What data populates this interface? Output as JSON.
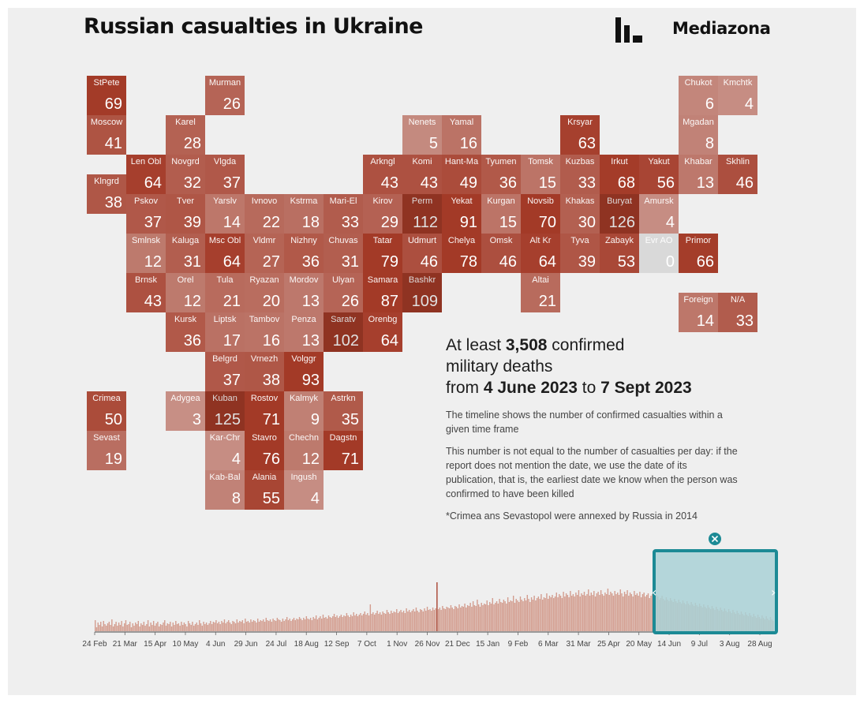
{
  "header": {
    "title": "Russian casualties in Ukraine",
    "brand": "Mediazona"
  },
  "colors": {
    "background": "#efefef",
    "tile_base": "#a33a27",
    "tile_zero": "#d9d9d9",
    "bar": "#c9826f",
    "selection_fill": "#a9d1d6",
    "selection_border": "#1c8a95"
  },
  "regions": [
    {
      "name": "StPete",
      "value": "69",
      "row": 0,
      "col": 0
    },
    {
      "name": "Murman",
      "value": "26",
      "row": 0,
      "col": 3
    },
    {
      "name": "Chukot",
      "value": "6",
      "row": 0,
      "col": 15
    },
    {
      "name": "Kmchtk",
      "value": "4",
      "row": 0,
      "col": 16
    },
    {
      "name": "Moscow",
      "value": "41",
      "row": 1,
      "col": 0
    },
    {
      "name": "Karel",
      "value": "28",
      "row": 1,
      "col": 2
    },
    {
      "name": "Nenets",
      "value": "5",
      "row": 1,
      "col": 8
    },
    {
      "name": "Yamal",
      "value": "16",
      "row": 1,
      "col": 9
    },
    {
      "name": "Krsyar",
      "value": "63",
      "row": 1,
      "col": 12
    },
    {
      "name": "Mgadan",
      "value": "8",
      "row": 1,
      "col": 15
    },
    {
      "name": "Len Obl",
      "value": "64",
      "row": 2,
      "col": 1
    },
    {
      "name": "Novgrd",
      "value": "32",
      "row": 2,
      "col": 2
    },
    {
      "name": "Vlgda",
      "value": "37",
      "row": 2,
      "col": 3
    },
    {
      "name": "Arkngl",
      "value": "43",
      "row": 2,
      "col": 7
    },
    {
      "name": "Komi",
      "value": "43",
      "row": 2,
      "col": 8
    },
    {
      "name": "Hant-Ma",
      "value": "49",
      "row": 2,
      "col": 9
    },
    {
      "name": "Tyumen",
      "value": "36",
      "row": 2,
      "col": 10
    },
    {
      "name": "Tomsk",
      "value": "15",
      "row": 2,
      "col": 11
    },
    {
      "name": "Kuzbas",
      "value": "33",
      "row": 2,
      "col": 12
    },
    {
      "name": "Irkut",
      "value": "68",
      "row": 2,
      "col": 13
    },
    {
      "name": "Yakut",
      "value": "56",
      "row": 2,
      "col": 14
    },
    {
      "name": "Khabar",
      "value": "13",
      "row": 2,
      "col": 15
    },
    {
      "name": "Skhlin",
      "value": "46",
      "row": 2,
      "col": 16
    },
    {
      "name": "Klngrd",
      "value": "38",
      "row": 2.5,
      "col": 0
    },
    {
      "name": "Pskov",
      "value": "37",
      "row": 3,
      "col": 1
    },
    {
      "name": "Tver",
      "value": "39",
      "row": 3,
      "col": 2
    },
    {
      "name": "Yarslv",
      "value": "14",
      "row": 3,
      "col": 3
    },
    {
      "name": "Ivnovo",
      "value": "22",
      "row": 3,
      "col": 4
    },
    {
      "name": "Kstrma",
      "value": "18",
      "row": 3,
      "col": 5
    },
    {
      "name": "Mari-El",
      "value": "33",
      "row": 3,
      "col": 6
    },
    {
      "name": "Kirov",
      "value": "29",
      "row": 3,
      "col": 7
    },
    {
      "name": "Perm",
      "value": "112",
      "row": 3,
      "col": 8
    },
    {
      "name": "Yekat",
      "value": "91",
      "row": 3,
      "col": 9
    },
    {
      "name": "Kurgan",
      "value": "15",
      "row": 3,
      "col": 10
    },
    {
      "name": "Novsib",
      "value": "70",
      "row": 3,
      "col": 11
    },
    {
      "name": "Khakas",
      "value": "30",
      "row": 3,
      "col": 12
    },
    {
      "name": "Buryat",
      "value": "126",
      "row": 3,
      "col": 13
    },
    {
      "name": "Amursk",
      "value": "4",
      "row": 3,
      "col": 14
    },
    {
      "name": "Smlnsk",
      "value": "12",
      "row": 4,
      "col": 1
    },
    {
      "name": "Kaluga",
      "value": "31",
      "row": 4,
      "col": 2
    },
    {
      "name": "Msc Obl",
      "value": "64",
      "row": 4,
      "col": 3
    },
    {
      "name": "Vldmr",
      "value": "27",
      "row": 4,
      "col": 4
    },
    {
      "name": "Nizhny",
      "value": "36",
      "row": 4,
      "col": 5
    },
    {
      "name": "Chuvas",
      "value": "31",
      "row": 4,
      "col": 6
    },
    {
      "name": "Tatar",
      "value": "79",
      "row": 4,
      "col": 7
    },
    {
      "name": "Udmurt",
      "value": "46",
      "row": 4,
      "col": 8
    },
    {
      "name": "Chelya",
      "value": "78",
      "row": 4,
      "col": 9
    },
    {
      "name": "Omsk",
      "value": "46",
      "row": 4,
      "col": 10
    },
    {
      "name": "Alt Kr",
      "value": "64",
      "row": 4,
      "col": 11
    },
    {
      "name": "Tyva",
      "value": "39",
      "row": 4,
      "col": 12
    },
    {
      "name": "Zabayk",
      "value": "53",
      "row": 4,
      "col": 13
    },
    {
      "name": "Evr AO",
      "value": "0",
      "row": 4,
      "col": 14
    },
    {
      "name": "Primor",
      "value": "66",
      "row": 4,
      "col": 15
    },
    {
      "name": "Brnsk",
      "value": "43",
      "row": 5,
      "col": 1
    },
    {
      "name": "Orel",
      "value": "12",
      "row": 5,
      "col": 2
    },
    {
      "name": "Tula",
      "value": "21",
      "row": 5,
      "col": 3
    },
    {
      "name": "Ryazan",
      "value": "20",
      "row": 5,
      "col": 4
    },
    {
      "name": "Mordov",
      "value": "13",
      "row": 5,
      "col": 5
    },
    {
      "name": "Ulyan",
      "value": "26",
      "row": 5,
      "col": 6
    },
    {
      "name": "Samara",
      "value": "87",
      "row": 5,
      "col": 7
    },
    {
      "name": "Bashkr",
      "value": "109",
      "row": 5,
      "col": 8
    },
    {
      "name": "Altai",
      "value": "21",
      "row": 5,
      "col": 11
    },
    {
      "name": "Foreign",
      "value": "14",
      "row": 5.5,
      "col": 15
    },
    {
      "name": "N/A",
      "value": "33",
      "row": 5.5,
      "col": 16
    },
    {
      "name": "Kursk",
      "value": "36",
      "row": 6,
      "col": 2
    },
    {
      "name": "Liptsk",
      "value": "17",
      "row": 6,
      "col": 3
    },
    {
      "name": "Tambov",
      "value": "16",
      "row": 6,
      "col": 4
    },
    {
      "name": "Penza",
      "value": "13",
      "row": 6,
      "col": 5
    },
    {
      "name": "Saratv",
      "value": "102",
      "row": 6,
      "col": 6
    },
    {
      "name": "Orenbg",
      "value": "64",
      "row": 6,
      "col": 7
    },
    {
      "name": "Belgrd",
      "value": "37",
      "row": 7,
      "col": 3
    },
    {
      "name": "Vrnezh",
      "value": "38",
      "row": 7,
      "col": 4
    },
    {
      "name": "Volggr",
      "value": "93",
      "row": 7,
      "col": 5
    },
    {
      "name": "Crimea",
      "value": "50",
      "row": 8,
      "col": 0
    },
    {
      "name": "Adygea",
      "value": "3",
      "row": 8,
      "col": 2
    },
    {
      "name": "Kuban",
      "value": "125",
      "row": 8,
      "col": 3
    },
    {
      "name": "Rostov",
      "value": "71",
      "row": 8,
      "col": 4
    },
    {
      "name": "Kalmyk",
      "value": "9",
      "row": 8,
      "col": 5
    },
    {
      "name": "Astrkn",
      "value": "35",
      "row": 8,
      "col": 6
    },
    {
      "name": "Sevast",
      "value": "19",
      "row": 9,
      "col": 0
    },
    {
      "name": "Kar-Chr",
      "value": "4",
      "row": 9,
      "col": 3
    },
    {
      "name": "Stavro",
      "value": "76",
      "row": 9,
      "col": 4
    },
    {
      "name": "Chechn",
      "value": "12",
      "row": 9,
      "col": 5
    },
    {
      "name": "Dagstn",
      "value": "71",
      "row": 9,
      "col": 6
    },
    {
      "name": "Kab-Bal",
      "value": "8",
      "row": 10,
      "col": 3
    },
    {
      "name": "Alania",
      "value": "55",
      "row": 10,
      "col": 4
    },
    {
      "name": "Ingush",
      "value": "4",
      "row": 10,
      "col": 5
    }
  ],
  "info": {
    "lead": "At least ",
    "total": "3,508",
    "lead_tail": " confirmed",
    "line2": "military deaths",
    "from_word": "from ",
    "date_from": "4 June 2023",
    "to_word": " to ",
    "date_to": "7 Sept 2023",
    "para1": "The timeline shows the number of confirmed casualties within a given time frame",
    "para2": "This number is not equal to the number of casualties per day: if the report does not mention the date, we use the date of its publication, that is, the earliest date we know when the person was confirmed to have been killed",
    "note": "*Crimea ans Sevastopol were annexed by Russia in 2014"
  },
  "timeline": {
    "ticks": [
      "24 Feb",
      "21 Mar",
      "15 Apr",
      "10 May",
      "4 Jun",
      "29 Jun",
      "24 Jul",
      "18 Aug",
      "12 Sep",
      "7 Oct",
      "1 Nov",
      "26 Nov",
      "21 Dec",
      "15 Jan",
      "9 Feb",
      "6 Mar",
      "31 Mar",
      "25 Apr",
      "20 May",
      "14 Jun",
      "9 Jul",
      "3 Aug",
      "28 Aug"
    ],
    "selection": {
      "start": "4 Jun",
      "end": "7 Sep"
    },
    "close_icon": "close-icon",
    "handle_icons": [
      "chevron-left-icon",
      "chevron-right-icon"
    ]
  },
  "chart_data": {
    "type": "bar",
    "title": "Russian casualties in Ukraine",
    "xlabel": "",
    "ylabel": "",
    "x_ticks": [
      "24 Feb",
      "21 Mar",
      "15 Apr",
      "10 May",
      "4 Jun",
      "29 Jun",
      "24 Jul",
      "18 Aug",
      "12 Sep",
      "7 Oct",
      "1 Nov",
      "26 Nov",
      "21 Dec",
      "15 Jan",
      "9 Feb",
      "6 Mar",
      "31 Mar",
      "25 Apr",
      "20 May",
      "14 Jun",
      "9 Jul",
      "3 Aug",
      "28 Aug"
    ],
    "selected_range": [
      "4 Jun 2023",
      "7 Sep 2023"
    ],
    "series": [
      {
        "values": [
          14,
          5,
          11,
          8,
          12,
          6,
          13,
          9,
          7,
          10,
          12,
          8,
          15,
          6,
          9,
          12,
          7,
          11,
          8,
          13,
          6,
          10,
          14,
          8,
          9,
          12,
          5,
          10,
          7,
          11,
          9,
          13,
          6,
          10,
          8,
          12,
          7,
          9,
          14,
          6,
          11,
          8,
          13,
          7,
          10,
          12,
          6,
          9,
          8,
          11,
          14,
          7,
          10,
          9,
          12,
          6,
          11,
          8,
          13,
          9,
          10,
          7,
          12,
          8,
          11,
          9,
          6,
          13,
          10,
          8,
          12,
          7,
          9,
          11,
          8,
          14,
          10,
          7,
          12,
          9,
          11,
          8,
          10,
          13,
          9,
          12,
          11,
          14,
          10,
          12,
          9,
          13,
          11,
          15,
          10,
          12,
          14,
          11,
          9,
          13,
          12,
          10,
          15,
          11,
          13,
          12,
          14,
          10,
          16,
          12,
          13,
          11,
          15,
          12,
          14,
          13,
          11,
          16,
          12,
          14,
          13,
          15,
          12,
          17,
          14,
          13,
          15,
          12,
          16,
          14,
          13,
          17,
          15,
          14,
          12,
          16,
          13,
          15,
          18,
          14,
          16,
          13,
          15,
          17,
          14,
          16,
          15,
          18,
          16,
          14,
          17,
          15,
          19,
          16,
          15,
          17,
          14,
          18,
          16,
          20,
          15,
          17,
          19,
          16,
          21,
          17,
          18,
          16,
          20,
          18,
          17,
          19,
          22,
          18,
          20,
          17,
          19,
          21,
          18,
          20,
          19,
          23,
          20,
          18,
          21,
          19,
          24,
          20,
          22,
          19,
          21,
          23,
          20,
          22,
          25,
          21,
          23,
          20,
          34,
          22,
          24,
          21,
          23,
          26,
          22,
          24,
          21,
          25,
          23,
          22,
          27,
          24,
          22,
          26,
          23,
          25,
          24,
          28,
          23,
          25,
          27,
          24,
          26,
          23,
          29,
          25,
          27,
          24,
          26,
          28,
          25,
          30,
          26,
          24,
          28,
          27,
          25,
          29,
          26,
          31,
          27,
          28,
          26,
          30,
          27,
          29,
          62,
          28,
          30,
          27,
          32,
          29,
          28,
          31,
          30,
          29,
          33,
          30,
          28,
          32,
          31,
          29,
          34,
          30,
          32,
          31,
          35,
          30,
          33,
          32,
          36,
          31,
          38,
          33,
          32,
          40,
          34,
          31,
          36,
          33,
          35,
          34,
          39,
          33,
          37,
          35,
          42,
          34,
          36,
          38,
          35,
          41,
          37,
          36,
          40,
          38,
          35,
          43,
          37,
          39,
          38,
          45,
          36,
          41,
          39,
          37,
          44,
          40,
          38,
          42,
          39,
          46,
          41,
          37,
          43,
          40,
          45,
          39,
          42,
          44,
          41,
          47,
          40,
          43,
          42,
          48,
          41,
          45,
          43,
          46,
          42,
          44,
          49,
          43,
          47,
          45,
          42,
          50,
          44,
          48,
          46,
          43,
          51,
          45,
          47,
          44,
          49,
          46,
          52,
          44,
          48,
          46,
          50,
          45,
          47,
          53,
          45,
          49,
          46,
          51,
          44,
          48,
          50,
          46,
          52,
          47,
          45,
          49,
          47,
          54,
          46,
          50,
          48,
          45,
          51,
          47,
          49,
          46,
          53,
          48,
          44,
          50,
          47,
          52,
          45,
          49,
          47,
          44,
          51,
          46,
          48,
          45,
          50,
          43,
          47,
          49,
          44,
          46,
          48,
          42,
          45,
          47,
          43,
          41,
          46,
          44,
          40,
          42,
          45,
          41,
          39,
          43,
          40,
          38,
          42,
          39,
          37,
          41,
          38,
          36,
          40,
          37,
          35,
          39,
          36,
          34,
          38,
          35,
          33,
          37,
          34,
          32,
          36,
          33,
          31,
          35,
          32,
          30,
          34,
          31,
          29,
          33,
          30,
          28,
          32,
          29,
          27,
          31,
          28,
          26,
          30,
          27,
          25,
          29,
          26,
          24,
          28,
          25,
          23,
          27,
          24,
          22,
          26,
          23,
          21,
          25,
          22,
          20,
          24,
          21,
          19,
          23,
          20,
          18,
          22,
          19,
          17,
          21,
          18,
          16,
          20,
          17,
          15,
          19,
          16,
          14,
          18,
          15,
          13
        ]
      }
    ]
  }
}
